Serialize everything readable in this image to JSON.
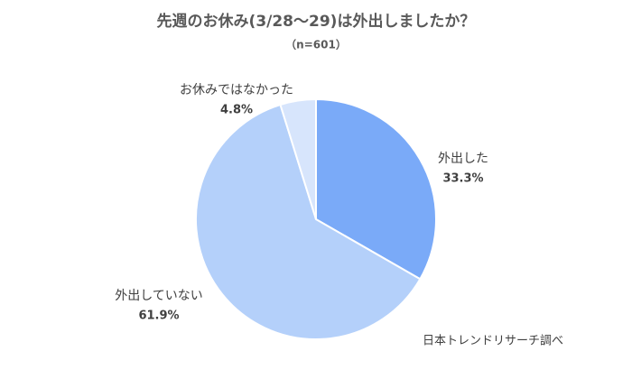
{
  "chart_data": {
    "type": "pie",
    "title": "先週のお休み(3/28～29)は外出しましたか？",
    "subtitle": "（n=601）",
    "categories": [
      "外出した",
      "外出していない",
      "お休みではなかった"
    ],
    "values": [
      33.3,
      61.9,
      4.8
    ],
    "value_labels": [
      "33.3%",
      "61.9%",
      "4.8%"
    ],
    "colors": [
      "#7aaaf8",
      "#b4d0fa",
      "#d7e5fc"
    ],
    "source": "日本トレンドリサーチ調べ"
  }
}
